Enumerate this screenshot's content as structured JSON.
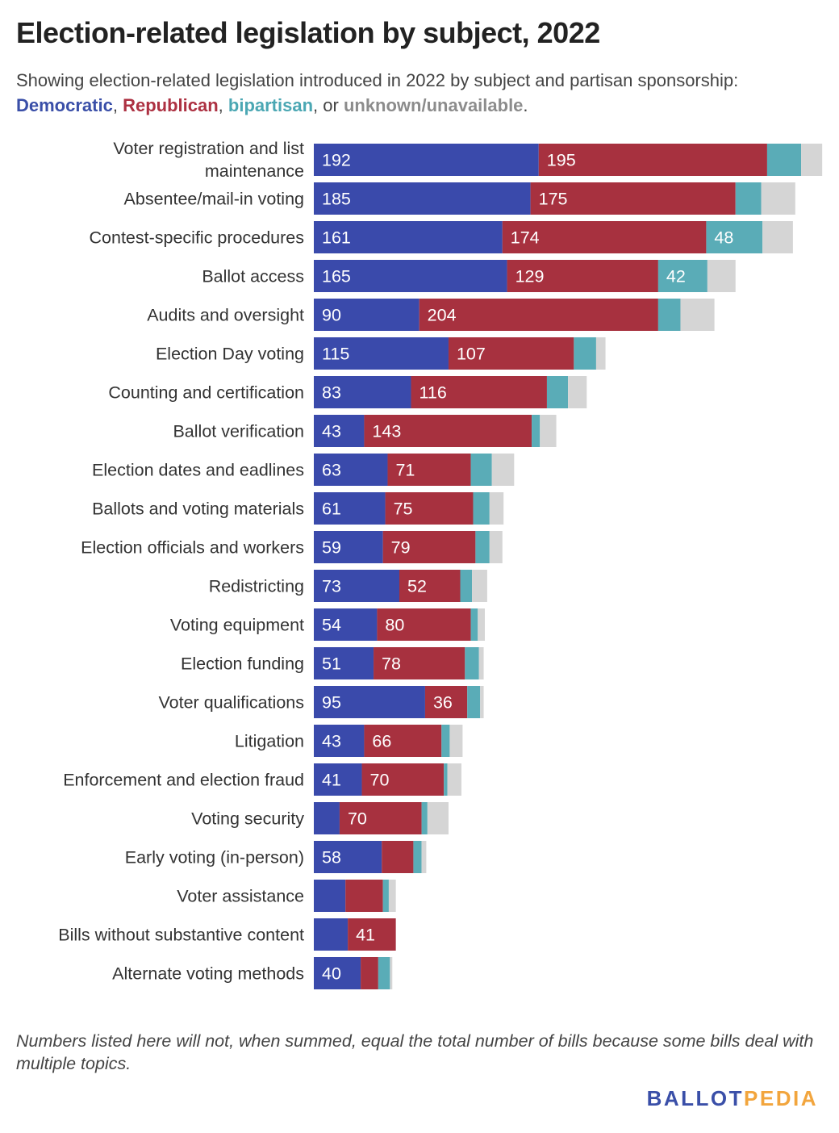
{
  "title": "Election-related legislation by subject, 2022",
  "subtitle": {
    "prefix": "Showing election-related legislation introduced in 2022 by subject and partisan sponsorship:",
    "dem": "Democratic",
    "sep1": ", ",
    "rep": "Republican",
    "sep2": ", ",
    "bip": "bipartisan",
    "sep3": ", or ",
    "unk": "unknown/unavailable",
    "end": "."
  },
  "note": "Numbers listed here will not, when summed, equal the total number of bills because some bills deal with multiple topics.",
  "logo": {
    "part1": "BALLOT",
    "part2": "PEDIA"
  },
  "colors": {
    "democratic": "#3a4aab",
    "republican": "#a7313f",
    "bipartisan": "#5aacb7",
    "unknown": "#d5d5d5"
  },
  "chart_data": {
    "type": "bar",
    "orientation": "horizontal",
    "stacked": true,
    "categories": [
      "Voter registration and list maintenance",
      "Absentee/mail-in voting",
      "Contest-specific procedures",
      "Ballot access",
      "Audits and oversight",
      "Election Day voting",
      "Counting and certification",
      "Ballot verification",
      "Election dates and eadlines",
      "Ballots and voting materials",
      "Election officials and workers",
      "Redistricting",
      "Voting equipment",
      "Election funding",
      "Voter qualifications",
      "Litigation",
      "Enforcement and election fraud",
      "Voting security",
      "Early voting (in-person)",
      "Voter assistance",
      "Bills without substantive content",
      "Alternate voting methods"
    ],
    "series": [
      {
        "name": "Democratic",
        "values": [
          192,
          185,
          161,
          165,
          90,
          115,
          83,
          43,
          63,
          61,
          59,
          73,
          54,
          51,
          95,
          43,
          41,
          22,
          58,
          27,
          29,
          40
        ],
        "labels": [
          "192",
          "185",
          "161",
          "165",
          "90",
          "115",
          "83",
          "43",
          "63",
          "61",
          "59",
          "73",
          "54",
          "51",
          "95",
          "43",
          "41",
          "",
          "58",
          "",
          "",
          "40"
        ]
      },
      {
        "name": "Republican",
        "values": [
          195,
          175,
          174,
          129,
          204,
          107,
          116,
          143,
          71,
          75,
          79,
          52,
          80,
          78,
          36,
          66,
          70,
          70,
          27,
          32,
          41,
          15
        ],
        "labels": [
          "195",
          "175",
          "174",
          "129",
          "204",
          "107",
          "116",
          "143",
          "71",
          "75",
          "79",
          "52",
          "80",
          "78",
          "36",
          "66",
          "70",
          "70",
          "",
          "",
          "41",
          ""
        ]
      },
      {
        "name": "bipartisan",
        "values": [
          29,
          22,
          48,
          42,
          19,
          19,
          18,
          7,
          18,
          14,
          12,
          10,
          6,
          12,
          11,
          7,
          3,
          5,
          7,
          5,
          0,
          10
        ],
        "labels": [
          "",
          "",
          "48",
          "42",
          "",
          "",
          "",
          "",
          "",
          "",
          "",
          "",
          "",
          "",
          "",
          "",
          "",
          "",
          "",
          "",
          "",
          ""
        ]
      },
      {
        "name": "unknown/unavailable",
        "values": [
          18,
          29,
          26,
          24,
          29,
          8,
          16,
          14,
          19,
          12,
          11,
          13,
          6,
          4,
          3,
          11,
          12,
          18,
          4,
          6,
          0,
          2
        ],
        "labels": [
          "",
          "",
          "",
          "",
          "",
          "",
          "",
          "",
          "",
          "",
          "",
          "",
          "",
          "",
          "",
          "",
          "",
          "",
          "",
          "",
          "",
          ""
        ]
      }
    ],
    "xlim": [
      0,
      435
    ],
    "grid": false,
    "legend": "in subtitle"
  }
}
